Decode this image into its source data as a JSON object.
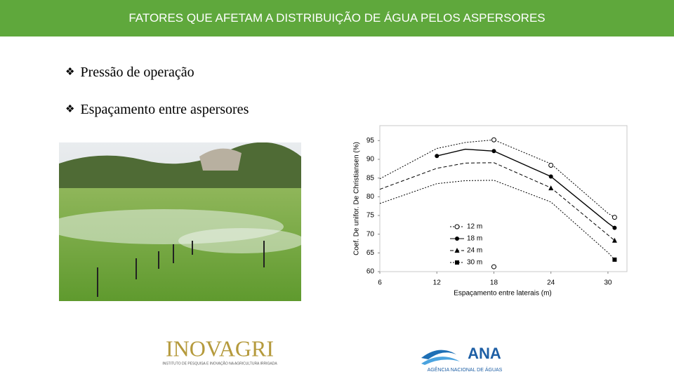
{
  "header": {
    "title": "FATORES QUE AFETAM A DISTRIBUIÇÃO DE ÁGUA PELOS ASPERSORES"
  },
  "bullets": [
    "Pressão de operação",
    "Espaçamento entre aspersores"
  ],
  "chart_data": {
    "type": "line",
    "x_label": "Espaçamento entre laterais (m)",
    "y_label": "Coef. De unifor. De Christiansen (%)",
    "xlim": [
      6,
      32
    ],
    "xticks": [
      6,
      12,
      18,
      24,
      30
    ],
    "ylim": [
      60,
      99
    ],
    "yticks": [
      60,
      65,
      70,
      75,
      80,
      85,
      90,
      95
    ],
    "curve_x": [
      6,
      12,
      15,
      18,
      24,
      30,
      30.7
    ],
    "series": [
      {
        "name": "12 m",
        "color": "#000000",
        "dash": "dotted",
        "marker": "open-circle",
        "x": [
          18,
          24,
          30.7,
          18
        ],
        "values": [
          95.2,
          88.4,
          74.5,
          61.3
        ],
        "curve": [
          84.8,
          92.9,
          94.5,
          95.2,
          88.8,
          75.6,
          74.5
        ]
      },
      {
        "name": "18 m",
        "color": "#000000",
        "dash": "solid",
        "marker": "circle",
        "x": [
          12,
          18,
          24,
          30.7
        ],
        "values": [
          90.9,
          92.2,
          85.4,
          71.7
        ],
        "curve": [
          null,
          90.9,
          92.7,
          92.2,
          85.4,
          73.0,
          71.7
        ]
      },
      {
        "name": "24 m",
        "color": "#000000",
        "dash": "dashed",
        "marker": "triangle",
        "x": [
          24,
          30.7
        ],
        "values": [
          82.3,
          68.3
        ],
        "curve": [
          82.0,
          87.6,
          89.0,
          89.1,
          82.4,
          69.8,
          68.3
        ]
      },
      {
        "name": "30 m",
        "color": "#000000",
        "dash": "dotted",
        "marker": "square",
        "x": [
          30.7
        ],
        "values": [
          63.2
        ],
        "curve": [
          78.2,
          83.5,
          84.3,
          84.4,
          78.6,
          65.1,
          63.2
        ]
      }
    ]
  },
  "logos": {
    "inovagri": "INOVAGRI",
    "inovagri_sub": "INSTITUTO DE PESQUISA E INOVAÇÃO NA AGRICULTURA IRRIGADA",
    "ana": "ANA",
    "ana_sub": "AGÊNCIA NACIONAL DE ÁGUAS"
  }
}
